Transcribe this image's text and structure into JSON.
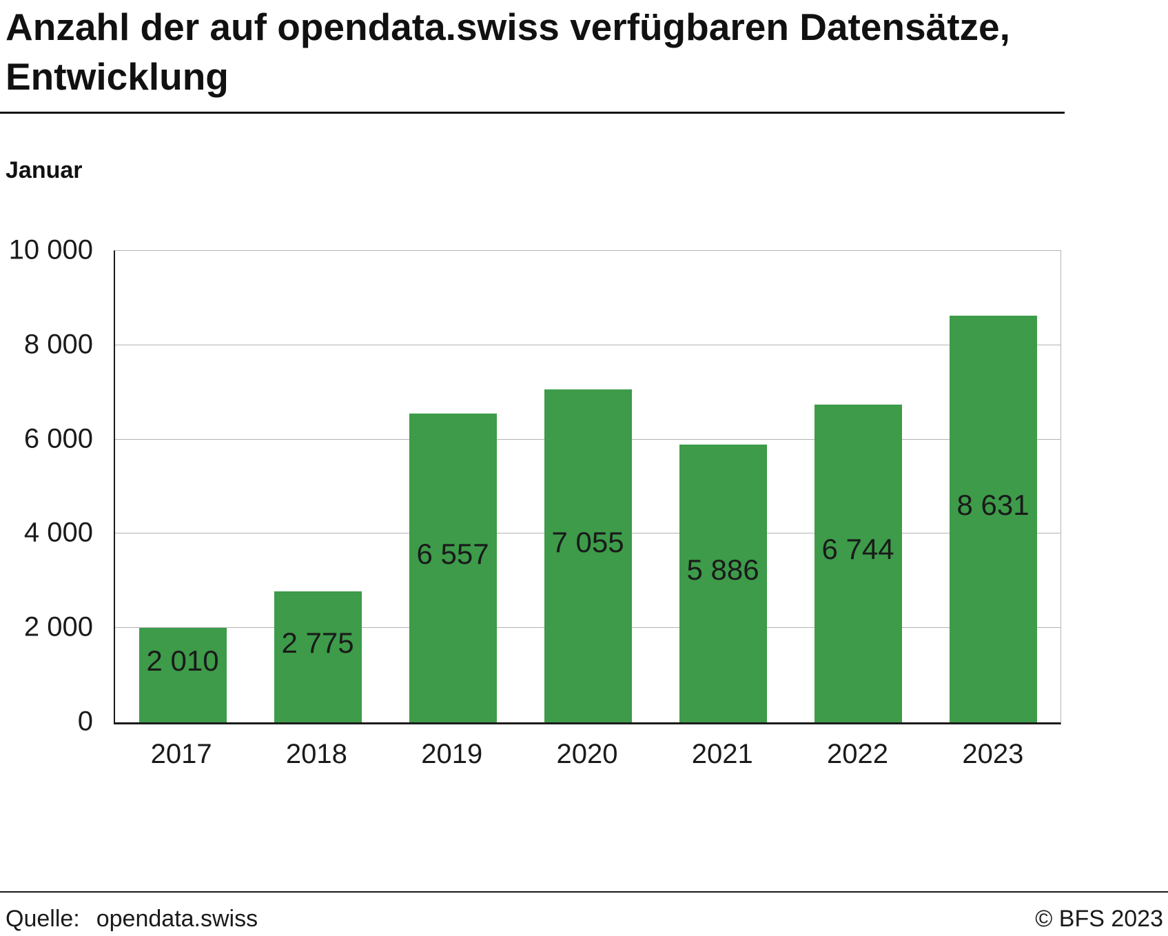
{
  "title": "Anzahl der auf opendata.swiss verfügbaren Datensätze, Entwicklung",
  "subtitle": "Januar",
  "footer": {
    "source_label": "Quelle:",
    "source_value": "opendata.swiss",
    "copyright": "© BFS 2023"
  },
  "chart_data": {
    "type": "bar",
    "title": "Anzahl der auf opendata.swiss verfügbaren Datensätze, Entwicklung",
    "subtitle": "Januar",
    "categories": [
      "2017",
      "2018",
      "2019",
      "2020",
      "2021",
      "2022",
      "2023"
    ],
    "values": [
      2010,
      2775,
      6557,
      7055,
      5886,
      6744,
      8631
    ],
    "value_labels": [
      "2 010",
      "2 775",
      "6 557",
      "7 055",
      "5 886",
      "6 744",
      "8 631"
    ],
    "xlabel": "",
    "ylabel": "",
    "ylim": [
      0,
      10000
    ],
    "ytick_interval": 2000,
    "ytick_labels": [
      "0",
      "2 000",
      "4 000",
      "6 000",
      "8 000",
      "10 000"
    ],
    "grid": true,
    "legend": "none",
    "bar_color": "#3d9b49",
    "value_label_color": "#1a1a1a",
    "gridline_color": "#b3b3b3"
  }
}
